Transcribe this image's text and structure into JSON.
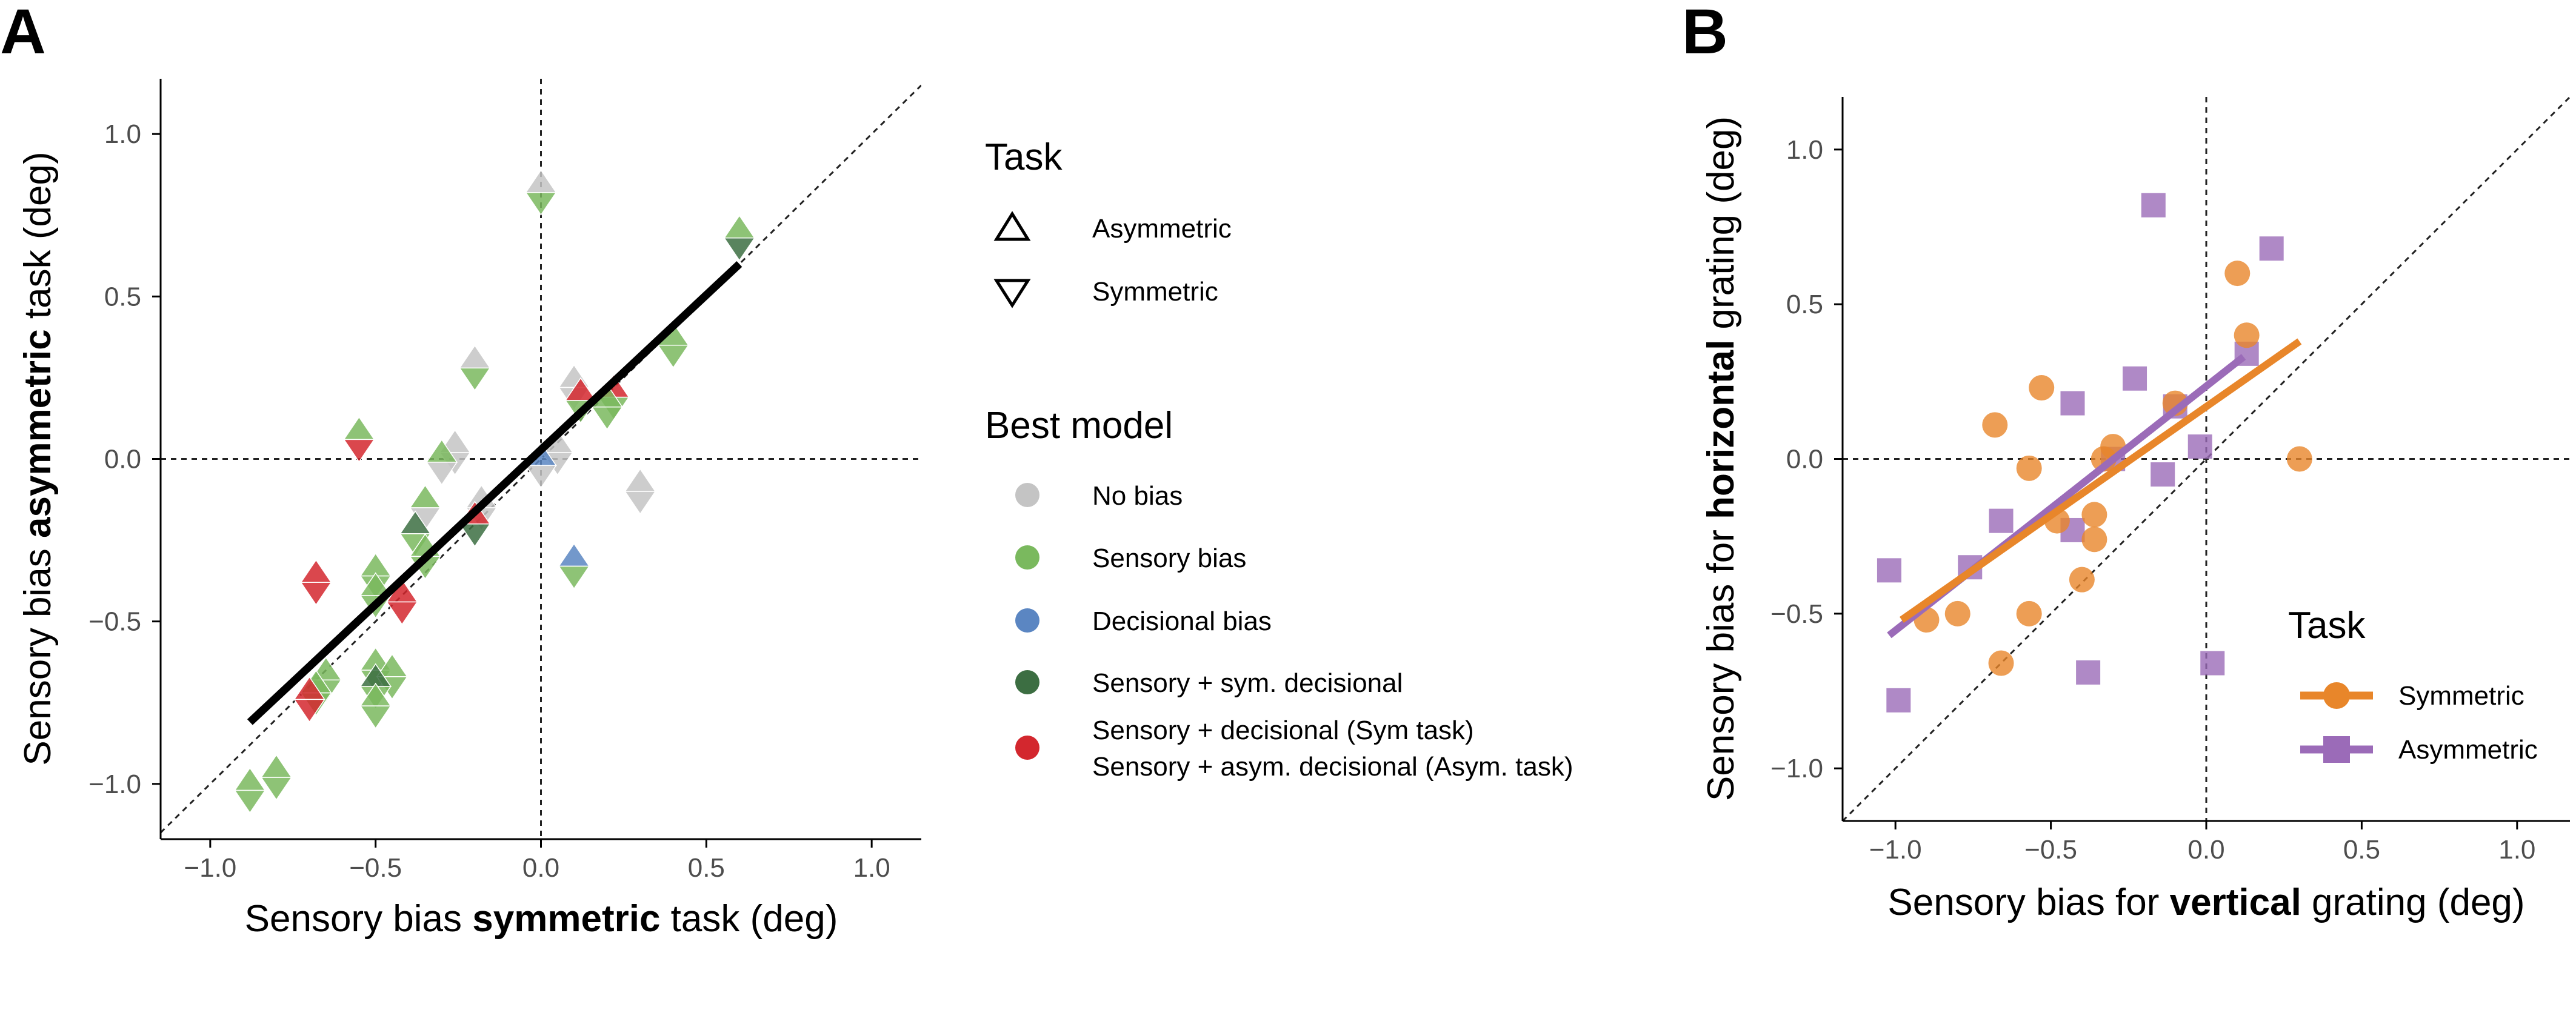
{
  "figure": {
    "panel_a_letter": "A",
    "panel_b_letter": "B"
  },
  "colors": {
    "no_bias": "#c4c4c4",
    "sensory": "#7ab95e",
    "decisional": "#5b86c2",
    "sensory_sym": "#3c6e42",
    "sensory_asym": "#d3272e",
    "symmetric": "#e8862a",
    "asymmetric": "#9b6bb8",
    "fit_line_a": "#000000"
  },
  "chart_data": [
    {
      "panel": "A",
      "type": "scatter",
      "xlabel": {
        "prefix": "Sensory bias ",
        "bold": "symmetric",
        "suffix": " task (deg)"
      },
      "ylabel": {
        "prefix": "Sensory bias ",
        "bold": "asymmetric",
        "suffix": " task (deg)"
      },
      "xlim": [
        -1.15,
        1.15
      ],
      "ylim": [
        -1.17,
        1.17
      ],
      "x_ticks": [
        -1.0,
        -0.5,
        0.0,
        0.5,
        1.0
      ],
      "x_tick_labels": [
        "−1.0",
        "−0.5",
        "0.0",
        "0.5",
        "1.0"
      ],
      "y_ticks": [
        -1.0,
        -0.5,
        0.0,
        0.5,
        1.0
      ],
      "y_tick_labels": [
        "−1.0",
        "−0.5",
        "0.0",
        "0.5",
        "1.0"
      ],
      "reference_lines": {
        "identity": true,
        "x_zero": true,
        "y_zero": true
      },
      "fit_line": {
        "x": [
          -0.88,
          0.6
        ],
        "y": [
          -0.81,
          0.6
        ]
      },
      "points_format": "[x, y, asymmetric-task model, symmetric-task model]",
      "points": [
        [
          0.0,
          0.82,
          "nobias",
          "sensory"
        ],
        [
          0.6,
          0.68,
          "sensory",
          "sensorysym"
        ],
        [
          -0.2,
          0.28,
          "nobias",
          "sensory"
        ],
        [
          -0.55,
          0.06,
          "sensory",
          "sensoryasym"
        ],
        [
          0.1,
          0.22,
          "nobias",
          "nobias"
        ],
        [
          0.12,
          0.18,
          "sensoryasym",
          "sensory"
        ],
        [
          0.22,
          0.19,
          "sensoryasym",
          "sensory"
        ],
        [
          0.2,
          0.16,
          "sensory",
          "sensory"
        ],
        [
          0.4,
          0.35,
          "sensory",
          "sensory"
        ],
        [
          0.05,
          0.02,
          "nobias",
          "nobias"
        ],
        [
          0.0,
          -0.02,
          "decisional",
          "nobias"
        ],
        [
          -0.26,
          0.02,
          "nobias",
          "nobias"
        ],
        [
          -0.3,
          -0.01,
          "sensory",
          "nobias"
        ],
        [
          -0.18,
          -0.15,
          "nobias",
          "nobias"
        ],
        [
          0.3,
          -0.1,
          "nobias",
          "nobias"
        ],
        [
          -0.35,
          -0.15,
          "sensory",
          "nobias"
        ],
        [
          -0.38,
          -0.23,
          "sensorysym",
          "sensory"
        ],
        [
          -0.35,
          -0.3,
          "sensory",
          "sensory"
        ],
        [
          -0.2,
          -0.2,
          "sensoryasym",
          "sensorysym"
        ],
        [
          0.1,
          -0.33,
          "decisional",
          "sensory"
        ],
        [
          -0.5,
          -0.36,
          "sensory",
          "sensory"
        ],
        [
          -0.5,
          -0.42,
          "sensory",
          "sensory"
        ],
        [
          -0.42,
          -0.44,
          "sensoryasym",
          "sensoryasym"
        ],
        [
          -0.68,
          -0.38,
          "sensoryasym",
          "sensoryasym"
        ],
        [
          -0.5,
          -0.65,
          "sensory",
          "sensory"
        ],
        [
          -0.45,
          -0.67,
          "sensory",
          "sensory"
        ],
        [
          -0.5,
          -0.7,
          "sensorysym",
          "sensory"
        ],
        [
          -0.5,
          -0.76,
          "sensory",
          "sensory"
        ],
        [
          -0.65,
          -0.68,
          "sensory",
          "sensory"
        ],
        [
          -0.68,
          -0.72,
          "sensory",
          "sensory"
        ],
        [
          -0.7,
          -0.74,
          "sensoryasym",
          "sensoryasym"
        ],
        [
          -0.8,
          -0.98,
          "sensory",
          "sensory"
        ],
        [
          -0.88,
          -1.02,
          "sensory",
          "sensory"
        ]
      ]
    },
    {
      "panel": "B",
      "type": "scatter",
      "xlabel": {
        "prefix": "Sensory bias for ",
        "bold": "vertical",
        "suffix": " grating (deg)"
      },
      "ylabel": {
        "prefix": "Sensory bias for ",
        "bold": "horizontal",
        "suffix": " grating (deg)"
      },
      "xlim": [
        -1.17,
        1.17
      ],
      "ylim": [
        -1.17,
        1.17
      ],
      "x_ticks": [
        -1.0,
        -0.5,
        0.0,
        0.5,
        1.0
      ],
      "x_tick_labels": [
        "−1.0",
        "−0.5",
        "0.0",
        "0.5",
        "1.0"
      ],
      "y_ticks": [
        -1.0,
        -0.5,
        0.0,
        0.5,
        1.0
      ],
      "y_tick_labels": [
        "−1.0",
        "−0.5",
        "0.0",
        "0.5",
        "1.0"
      ],
      "reference_lines": {
        "identity": true,
        "x_zero": true,
        "y_zero": true
      },
      "series": [
        {
          "name": "Symmetric",
          "marker": "circle",
          "fit": {
            "x": [
              -0.98,
              0.3
            ],
            "y": [
              -0.52,
              0.38
            ]
          },
          "points": [
            [
              0.1,
              0.6
            ],
            [
              0.13,
              0.4
            ],
            [
              -0.1,
              0.18
            ],
            [
              -0.3,
              0.04
            ],
            [
              -0.33,
              0.0
            ],
            [
              0.3,
              0.0
            ],
            [
              -0.53,
              0.23
            ],
            [
              -0.68,
              0.11
            ],
            [
              -0.57,
              -0.03
            ],
            [
              -0.36,
              -0.18
            ],
            [
              -0.48,
              -0.2
            ],
            [
              -0.36,
              -0.26
            ],
            [
              -0.4,
              -0.39
            ],
            [
              -0.57,
              -0.5
            ],
            [
              -0.8,
              -0.5
            ],
            [
              -0.9,
              -0.52
            ],
            [
              -0.66,
              -0.66
            ]
          ]
        },
        {
          "name": "Asymmetric",
          "marker": "square",
          "fit": {
            "x": [
              -1.02,
              0.12
            ],
            "y": [
              -0.57,
              0.33
            ]
          },
          "points": [
            [
              -0.17,
              0.82
            ],
            [
              0.21,
              0.68
            ],
            [
              0.13,
              0.34
            ],
            [
              -0.23,
              0.26
            ],
            [
              -0.43,
              0.18
            ],
            [
              -0.1,
              0.17
            ],
            [
              -0.3,
              0.0
            ],
            [
              -0.02,
              0.04
            ],
            [
              -0.14,
              -0.05
            ],
            [
              -0.66,
              -0.2
            ],
            [
              -0.43,
              -0.23
            ],
            [
              -0.76,
              -0.35
            ],
            [
              -1.02,
              -0.36
            ],
            [
              -0.38,
              -0.69
            ],
            [
              0.02,
              -0.66
            ],
            [
              -0.99,
              -0.78
            ]
          ]
        }
      ]
    }
  ],
  "legend_a": {
    "task_title": "Task",
    "task_items": [
      {
        "label": "Asymmetric",
        "icon": "triangle-up-icon"
      },
      {
        "label": "Symmetric",
        "icon": "triangle-down-icon"
      }
    ],
    "model_title": "Best model",
    "model_items": [
      {
        "label": "No bias",
        "color_key": "no_bias",
        "icon": "circle-icon"
      },
      {
        "label": "Sensory bias",
        "color_key": "sensory",
        "icon": "circle-icon"
      },
      {
        "label": "Decisional bias",
        "color_key": "decisional",
        "icon": "circle-icon"
      },
      {
        "label": "Sensory + sym. decisional",
        "color_key": "sensory_sym",
        "icon": "circle-icon"
      },
      {
        "label": "Sensory + decisional (Sym task)",
        "label2": "Sensory + asym. decisional (Asym. task)",
        "color_key": "sensory_asym",
        "icon": "circle-icon"
      }
    ]
  },
  "legend_b": {
    "title": "Task",
    "items": [
      {
        "label": "Symmetric",
        "color_key": "symmetric",
        "icon": "circle-icon"
      },
      {
        "label": "Asymmetric",
        "color_key": "asymmetric",
        "icon": "square-icon"
      }
    ]
  }
}
